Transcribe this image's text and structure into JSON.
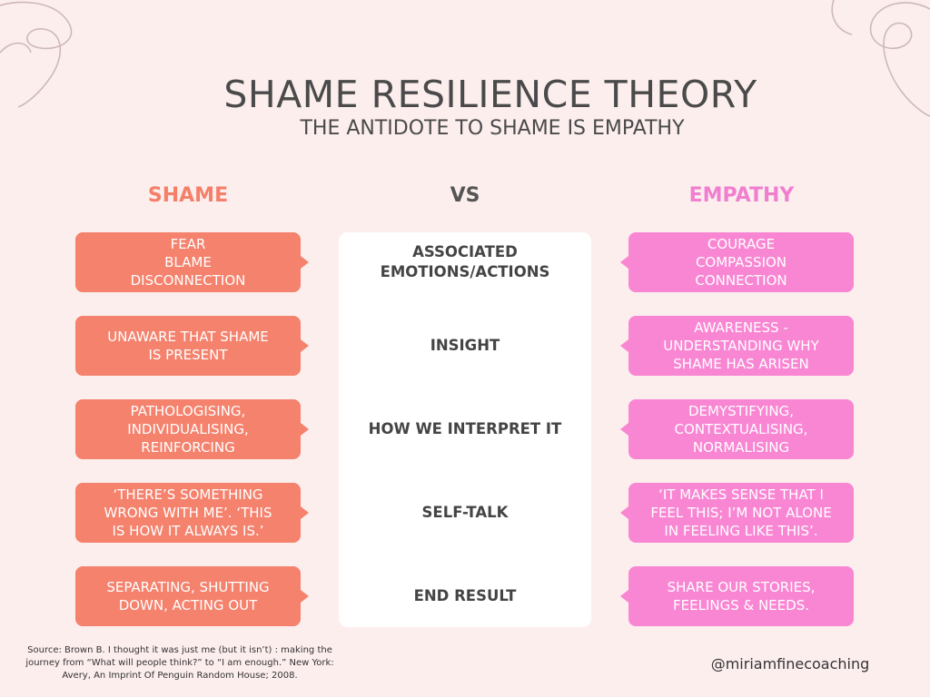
{
  "header": {
    "title": "SHAME RESILIENCE THEORY",
    "subtitle": "THE ANTIDOTE TO SHAME IS EMPATHY"
  },
  "columns": {
    "left": "SHAME",
    "center": "VS",
    "right": "EMPATHY"
  },
  "rows": [
    {
      "shame": "FEAR\nBLAME\nDISCONNECTION",
      "label": "ASSOCIATED\nEMOTIONS/ACTIONS",
      "empathy": "COURAGE\nCOMPASSION\nCONNECTION"
    },
    {
      "shame": "UNAWARE THAT SHAME\nIS PRESENT",
      "label": "INSIGHT",
      "empathy": "AWARENESS -\nUNDERSTANDING WHY\nSHAME HAS ARISEN"
    },
    {
      "shame": "PATHOLOGISING,\nINDIVIDUALISING,\nREINFORCING",
      "label": "HOW WE INTERPRET IT",
      "empathy": "DEMYSTIFYING,\nCONTEXTUALISING,\nNORMALISING"
    },
    {
      "shame": "‘THERE’S SOMETHING\nWRONG WITH ME’. ‘THIS\nIS HOW IT ALWAYS IS.’",
      "label": "SELF-TALK",
      "empathy": "‘IT MAKES SENSE THAT I\nFEEL THIS; I’M NOT ALONE\nIN FEELING LIKE THIS’."
    },
    {
      "shame": "SEPARATING, SHUTTING\nDOWN, ACTING OUT",
      "label": "END RESULT",
      "empathy": "SHARE OUR STORIES,\nFEELINGS & NEEDS."
    }
  ],
  "footer": {
    "source": "Source: Brown B. I thought it was just me (but it isn’t) : making the journey from “What will people think?” to “I am enough.” New York: Avery, An Imprint Of Penguin Random House; 2008.",
    "handle": "@miriamfinecoaching"
  },
  "colors": {
    "background": "#fdeeee",
    "shame": "#f4826d",
    "empathy": "#f986d3",
    "panel": "#ffffff"
  }
}
